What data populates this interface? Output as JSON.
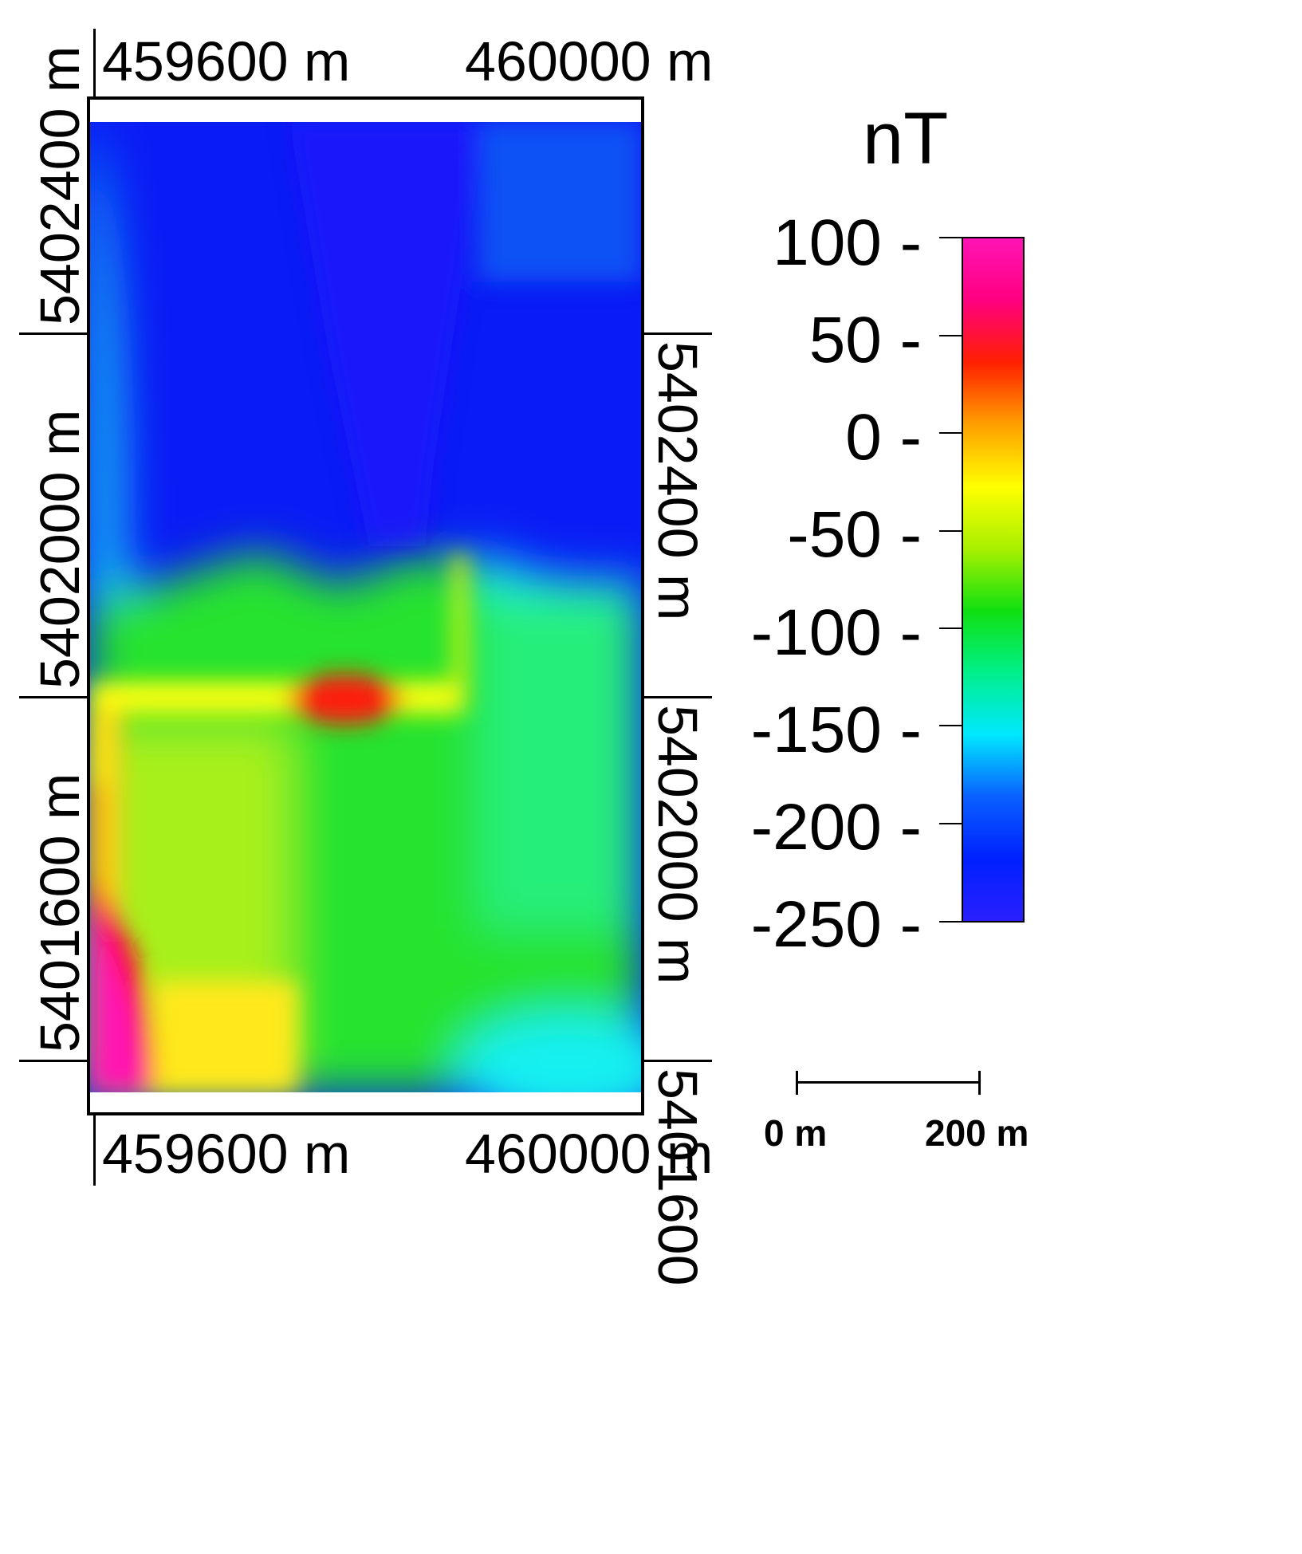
{
  "map": {
    "top_easting_labels": [
      "459600 m",
      "460000 m"
    ],
    "bottom_easting_labels": [
      "459600 m",
      "460000 m"
    ],
    "left_northing_labels": [
      "5402400 m",
      "5402000 m",
      "5401600 m"
    ],
    "right_northing_labels": [
      "5402400 m",
      "5402000 m",
      "5401600"
    ],
    "colormap": [
      "#2a1fff",
      "#0020ff",
      "#0a60ff",
      "#00e8ff",
      "#00f08a",
      "#10e010",
      "#a8f000",
      "#ffff00",
      "#ffa000",
      "#ff2000",
      "#ff0080",
      "#ff14b4"
    ],
    "anomaly_description_colors": {
      "dominant_north": "#0a1cf5",
      "dominant_south": "#22e52a",
      "high_anomaly": "#ff0a0a",
      "peak": "#ff14a8"
    }
  },
  "legend": {
    "unit": "nT",
    "tick_labels": [
      "100 -",
      "50 -",
      "0 -",
      "-50 -",
      "-100 -",
      "-150 -",
      "-200 -",
      "-250 -"
    ],
    "range": [
      -250,
      100
    ]
  },
  "scale_bar": {
    "start_label": "0 m",
    "end_label": "200 m"
  }
}
